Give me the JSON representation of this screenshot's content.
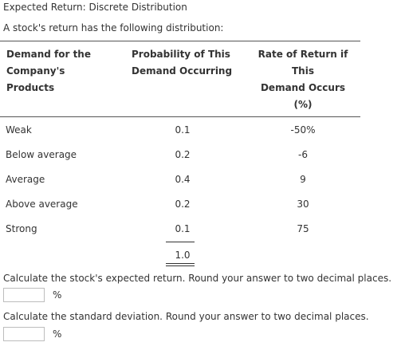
{
  "title": "Expected Return: Discrete Distribution",
  "intro": "A stock's return has the following distribution:",
  "table": {
    "headers": [
      [
        "Demand for the",
        "Company's",
        "Products"
      ],
      [
        "Probability of This",
        "Demand Occurring"
      ],
      [
        "Rate of Return if",
        "This",
        "Demand Occurs",
        "(%)"
      ]
    ],
    "rows": [
      {
        "demand": "Weak",
        "probability": "0.1",
        "return": "-50%"
      },
      {
        "demand": "Below average",
        "probability": "0.2",
        "return": "-6"
      },
      {
        "demand": "Average",
        "probability": "0.4",
        "return": "9"
      },
      {
        "demand": "Above average",
        "probability": "0.2",
        "return": "30"
      },
      {
        "demand": "Strong",
        "probability": "0.1",
        "return": "75"
      }
    ],
    "probability_total": "1.0"
  },
  "questions": [
    {
      "text": "Calculate the stock's expected return. Round your answer to two decimal places.",
      "value": "",
      "unit": "%"
    },
    {
      "text": "Calculate the standard deviation. Round your answer to two decimal places.",
      "value": "",
      "unit": "%"
    }
  ]
}
